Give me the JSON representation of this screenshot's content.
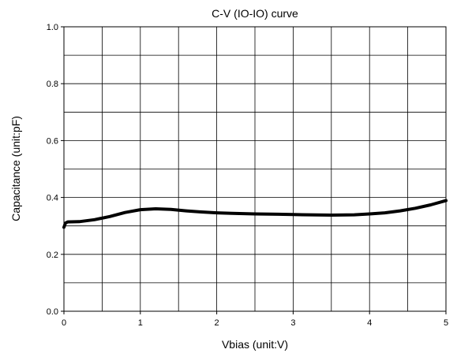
{
  "chart_data": {
    "type": "line",
    "title": "C-V (IO-IO) curve",
    "xlabel": "Vbias (unit:V)",
    "ylabel": "Capacitance (unit:pF)",
    "xlim": [
      0,
      5
    ],
    "ylim": [
      0,
      1.0
    ],
    "x_ticks": [
      0,
      1,
      2,
      3,
      4,
      5
    ],
    "x_tick_labels": [
      "0",
      "1",
      "2",
      "3",
      "4",
      "5"
    ],
    "y_ticks": [
      0,
      0.2,
      0.4,
      0.6,
      0.8,
      1.0
    ],
    "y_tick_labels": [
      "0.0",
      "0.2",
      "0.4",
      "0.6",
      "0.8",
      "1.0"
    ],
    "x_gridlines": [
      0.5,
      1,
      1.5,
      2,
      2.5,
      3,
      3.5,
      4,
      4.5
    ],
    "y_gridlines": [
      0.1,
      0.2,
      0.3,
      0.4,
      0.5,
      0.6,
      0.7,
      0.8,
      0.9
    ],
    "grid": true,
    "legend": false,
    "series": [
      {
        "color": "#000000",
        "x": [
          0,
          0.02,
          0.05,
          0.2,
          0.4,
          0.6,
          0.8,
          1.0,
          1.2,
          1.4,
          1.6,
          1.8,
          2.0,
          2.2,
          2.5,
          2.8,
          3.0,
          3.2,
          3.5,
          3.8,
          4.0,
          4.2,
          4.4,
          4.6,
          4.8,
          5.0
        ],
        "y": [
          0.295,
          0.31,
          0.314,
          0.315,
          0.322,
          0.333,
          0.347,
          0.357,
          0.36,
          0.358,
          0.353,
          0.349,
          0.346,
          0.344,
          0.342,
          0.341,
          0.34,
          0.339,
          0.338,
          0.339,
          0.342,
          0.346,
          0.353,
          0.362,
          0.374,
          0.389
        ]
      }
    ]
  }
}
